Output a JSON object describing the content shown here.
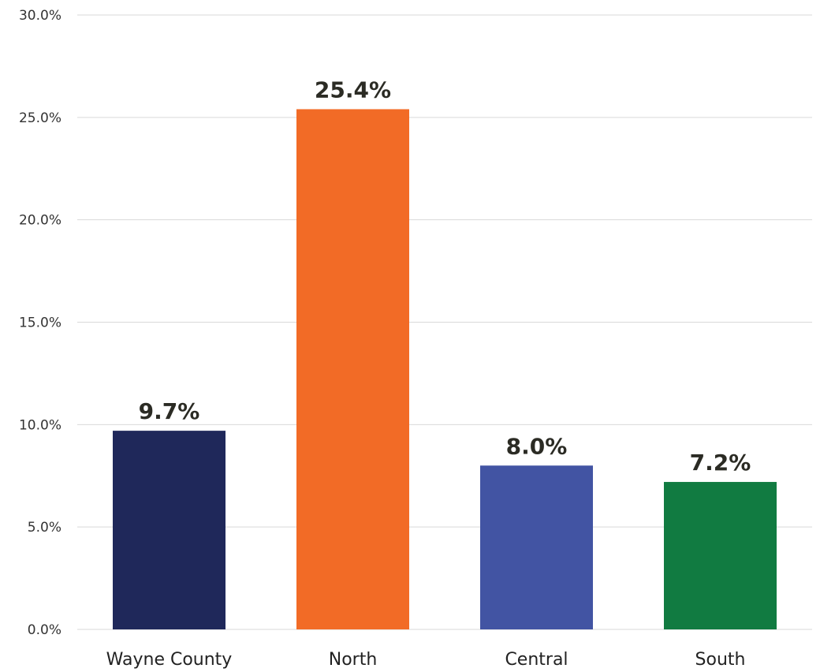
{
  "chart_data": {
    "type": "bar",
    "categories": [
      "Wayne County",
      "North",
      "Central",
      "South"
    ],
    "values": [
      9.7,
      25.4,
      8.0,
      7.2
    ],
    "data_labels": [
      "9.7%",
      "25.4%",
      "8.0%",
      "7.2%"
    ],
    "colors": [
      "#1f285a",
      "#f26b26",
      "#4254a3",
      "#117b41"
    ],
    "y_ticks": [
      "0.0%",
      "5.0%",
      "10.0%",
      "15.0%",
      "20.0%",
      "25.0%",
      "30.0%"
    ],
    "y_tick_values": [
      0,
      5,
      10,
      15,
      20,
      25,
      30
    ],
    "ylim": [
      0,
      30
    ],
    "title": "",
    "xlabel": "",
    "ylabel": "",
    "grid": true,
    "legend": "none"
  }
}
